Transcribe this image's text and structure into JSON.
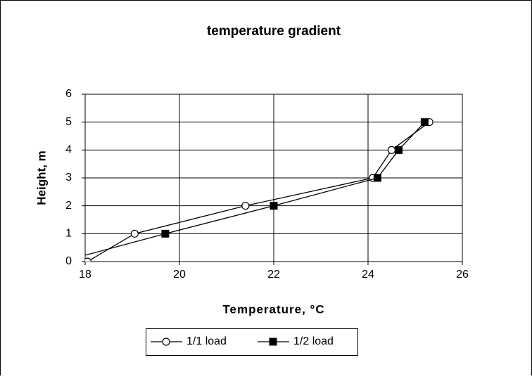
{
  "chart_data": {
    "type": "line",
    "title": "temperature gradient",
    "xlabel": "Temperature, °C",
    "ylabel": "Height, m",
    "xlim": [
      18,
      26
    ],
    "xticks": [
      18,
      20,
      22,
      24,
      26
    ],
    "ylim": [
      0,
      6
    ],
    "yticks": [
      0,
      1,
      2,
      3,
      4,
      5,
      6
    ],
    "grid": true,
    "series": [
      {
        "name": "1/1 load",
        "color": "#000000",
        "marker": "circle",
        "x": [
          18.05,
          19.05,
          21.4,
          24.1,
          24.5,
          25.3
        ],
        "values": [
          0,
          1,
          2,
          3,
          4,
          5
        ]
      },
      {
        "name": "1/2 load",
        "color": "#000000",
        "marker": "square",
        "x": [
          17.5,
          19.7,
          22.0,
          24.2,
          24.65,
          25.2
        ],
        "values": [
          0,
          1,
          2,
          3,
          4,
          5
        ]
      }
    ]
  }
}
